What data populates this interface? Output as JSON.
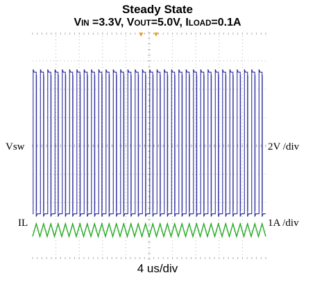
{
  "chart_data": {
    "type": "line",
    "title": "Steady State",
    "subtitle": {
      "parts": [
        {
          "text": "V",
          "small": false
        },
        {
          "text": "IN",
          "small": true
        },
        {
          "text": " =3.3V, V",
          "small": false
        },
        {
          "text": "OUT",
          "small": true
        },
        {
          "text": "=5.0V, I",
          "small": false
        },
        {
          "text": "LOAD",
          "small": true
        },
        {
          "text": "=0.1A",
          "small": false
        }
      ]
    },
    "xlabel": "4 us/div",
    "x_divisions": 10,
    "y_divisions": 8,
    "grid": true,
    "grid_color": "#b0b0b0",
    "series": [
      {
        "name": "Vsw",
        "scale_label": "2V /div",
        "color": "#2a2a9c",
        "waveform": "square",
        "periods": 32,
        "duty": 0.5,
        "low_div": 1.6,
        "high_div": 6.6
      },
      {
        "name": "IL",
        "scale_label": "1A /div",
        "color": "#22aa22",
        "waveform": "triangle",
        "periods": 32,
        "min_div": 0.8,
        "max_div": 1.25
      }
    ],
    "trigger_markers": [
      {
        "color": "#e8a020",
        "x_div": 4.65
      },
      {
        "color": "#e8a020",
        "x_div": 5.3
      }
    ]
  }
}
